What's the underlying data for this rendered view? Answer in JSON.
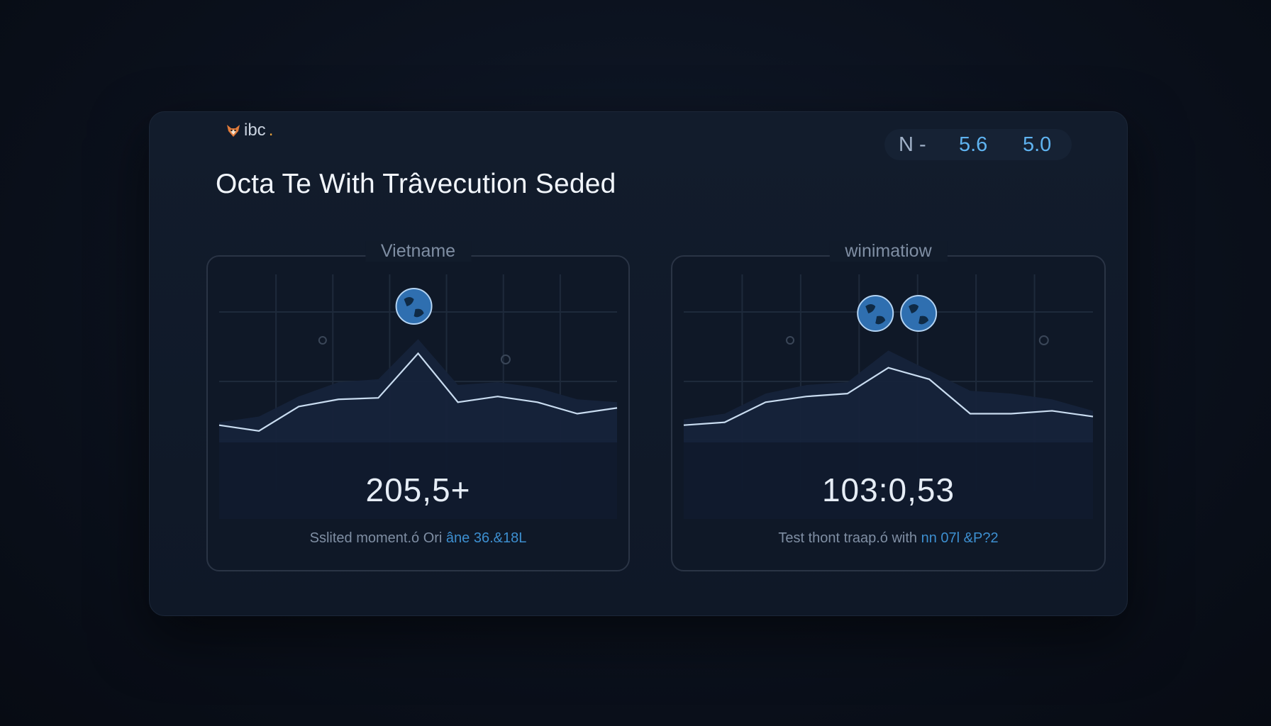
{
  "brand": {
    "name": "ibc",
    "dot": "."
  },
  "title": "Octa Te With Trâvecution Seded",
  "pill": {
    "label": "N -",
    "value1": "5.6",
    "value2": "5.0"
  },
  "panels": [
    {
      "title": "Vietname",
      "value": "205,5+",
      "caption": "Sslited moment.ó Ori",
      "caption_highlight": "âne 36.&18L",
      "icon": "globe-icon",
      "line": [
        12,
        8,
        25,
        30,
        31,
        62,
        28,
        32,
        28,
        20,
        24
      ],
      "area": [
        14,
        18,
        32,
        42,
        44,
        72,
        40,
        42,
        38,
        30,
        28
      ]
    },
    {
      "title": "winimatiow",
      "value": "103:0,53",
      "caption": "Test thont traap.ó with",
      "caption_highlight": "nn 07l &P?2",
      "icon": "globe-icon",
      "line": [
        12,
        14,
        28,
        32,
        34,
        52,
        44,
        20,
        20,
        22,
        18
      ],
      "area": [
        16,
        20,
        34,
        40,
        42,
        64,
        50,
        36,
        34,
        30,
        22
      ]
    }
  ],
  "colors": {
    "accent": "#5fb3f0",
    "line": "#c9dcf0",
    "area": "#16233a",
    "grid": "#1e2a3b"
  }
}
